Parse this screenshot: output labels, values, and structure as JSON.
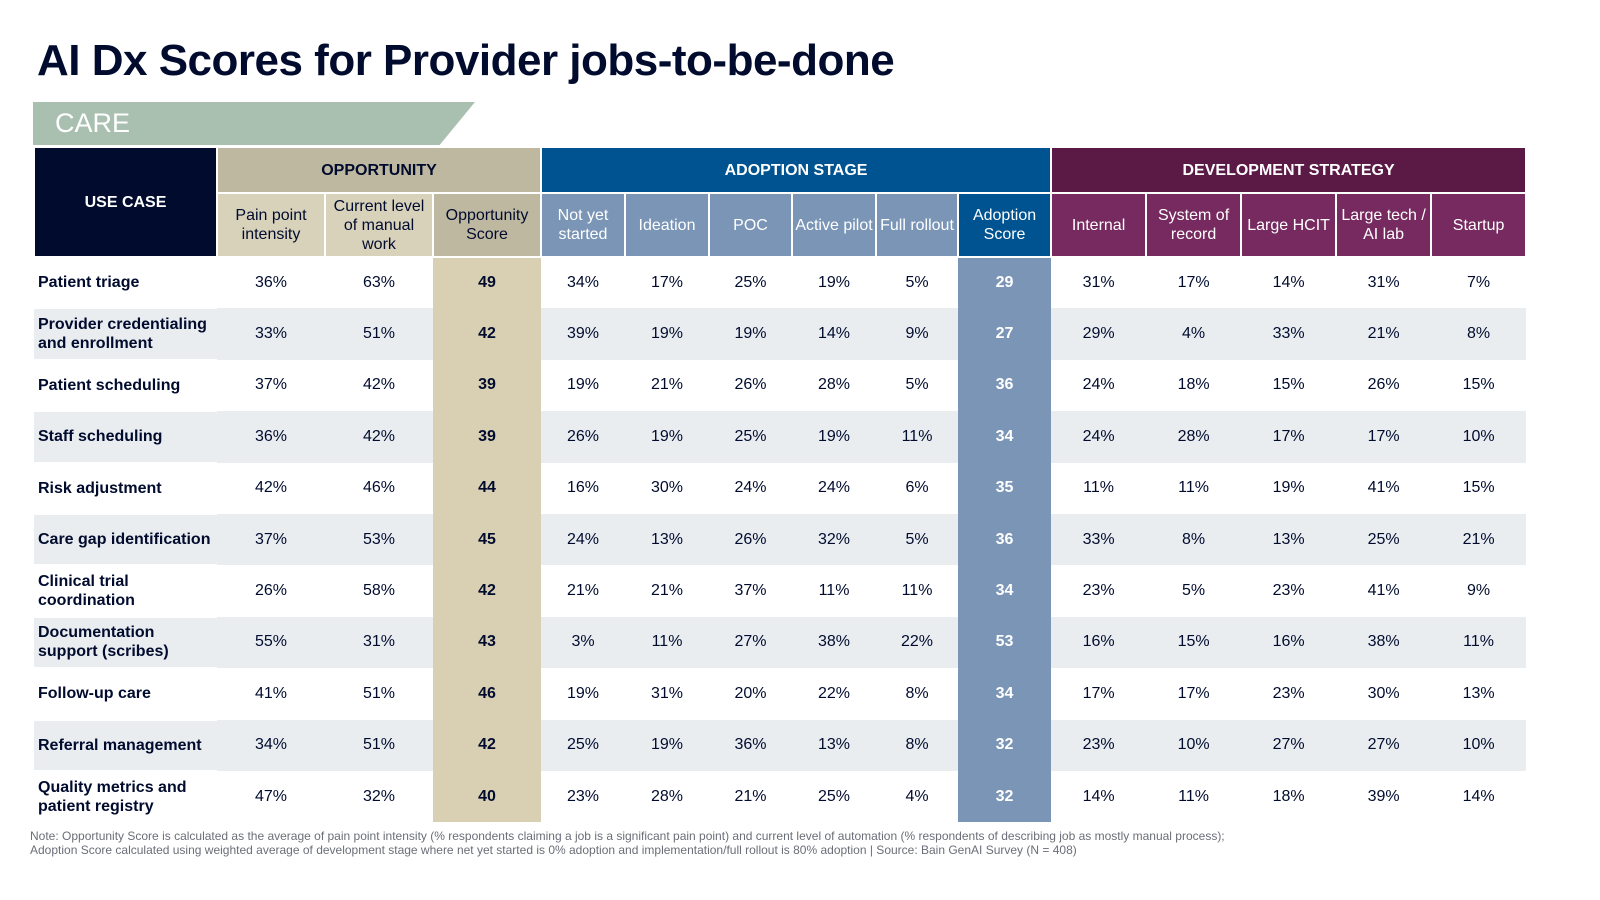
{
  "title": "AI Dx Scores for Provider jobs-to-be-done",
  "section": "CARE",
  "headers": {
    "use_case": "USE CASE",
    "groups": {
      "opportunity": "OPPORTUNITY",
      "adoption": "ADOPTION STAGE",
      "development": "DEVELOPMENT STRATEGY"
    },
    "columns": [
      "Pain point intensity",
      "Current level of manual work",
      "Opportunity Score",
      "Not yet started",
      "Ideation",
      "POC",
      "Active pilot",
      "Full rollout",
      "Adoption Score",
      "Internal",
      "System of record",
      "Large HCIT",
      "Large tech / AI lab",
      "Startup"
    ]
  },
  "rows": [
    {
      "use_case": "Patient triage",
      "values": [
        "36%",
        "63%",
        "49",
        "34%",
        "17%",
        "25%",
        "19%",
        "5%",
        "29",
        "31%",
        "17%",
        "14%",
        "31%",
        "7%"
      ]
    },
    {
      "use_case": "Provider credentialing and enrollment",
      "values": [
        "33%",
        "51%",
        "42",
        "39%",
        "19%",
        "19%",
        "14%",
        "9%",
        "27",
        "29%",
        "4%",
        "33%",
        "21%",
        "8%"
      ]
    },
    {
      "use_case": "Patient scheduling",
      "values": [
        "37%",
        "42%",
        "39",
        "19%",
        "21%",
        "26%",
        "28%",
        "5%",
        "36",
        "24%",
        "18%",
        "15%",
        "26%",
        "15%"
      ]
    },
    {
      "use_case": "Staff scheduling",
      "values": [
        "36%",
        "42%",
        "39",
        "26%",
        "19%",
        "25%",
        "19%",
        "11%",
        "34",
        "24%",
        "28%",
        "17%",
        "17%",
        "10%"
      ]
    },
    {
      "use_case": "Risk adjustment",
      "values": [
        "42%",
        "46%",
        "44",
        "16%",
        "30%",
        "24%",
        "24%",
        "6%",
        "35",
        "11%",
        "11%",
        "19%",
        "41%",
        "15%"
      ]
    },
    {
      "use_case": "Care gap identification",
      "values": [
        "37%",
        "53%",
        "45",
        "24%",
        "13%",
        "26%",
        "32%",
        "5%",
        "36",
        "33%",
        "8%",
        "13%",
        "25%",
        "21%"
      ]
    },
    {
      "use_case": "Clinical trial coordination",
      "values": [
        "26%",
        "58%",
        "42",
        "21%",
        "21%",
        "37%",
        "11%",
        "11%",
        "34",
        "23%",
        "5%",
        "23%",
        "41%",
        "9%"
      ]
    },
    {
      "use_case": "Documentation support (scribes)",
      "values": [
        "55%",
        "31%",
        "43",
        "3%",
        "11%",
        "27%",
        "38%",
        "22%",
        "53",
        "16%",
        "15%",
        "16%",
        "38%",
        "11%"
      ]
    },
    {
      "use_case": "Follow-up care",
      "values": [
        "41%",
        "51%",
        "46",
        "19%",
        "31%",
        "20%",
        "22%",
        "8%",
        "34",
        "17%",
        "17%",
        "23%",
        "30%",
        "13%"
      ]
    },
    {
      "use_case": "Referral management",
      "values": [
        "34%",
        "51%",
        "42",
        "25%",
        "19%",
        "36%",
        "13%",
        "8%",
        "32",
        "23%",
        "10%",
        "27%",
        "27%",
        "10%"
      ]
    },
    {
      "use_case": "Quality metrics and patient registry",
      "values": [
        "47%",
        "32%",
        "40",
        "23%",
        "28%",
        "21%",
        "25%",
        "4%",
        "32",
        "14%",
        "11%",
        "18%",
        "39%",
        "14%"
      ]
    }
  ],
  "note_lines": [
    "Note: Opportunity Score is calculated as the average of pain point intensity (% respondents claiming a job is a significant pain point) and current level of automation (% respondents of describing job as mostly manual process);",
    "Adoption Score calculated using weighted average of development stage where net yet started is 0% adoption and implementation/full rollout is 80% adoption | Source: Bain GenAI Survey (N = 408)"
  ],
  "colors": {
    "navy": "#000b2e",
    "opportunity": "#bfb8a0",
    "adoption": "#005391",
    "development": "#5b1a46",
    "section": "#a9bfb0"
  }
}
